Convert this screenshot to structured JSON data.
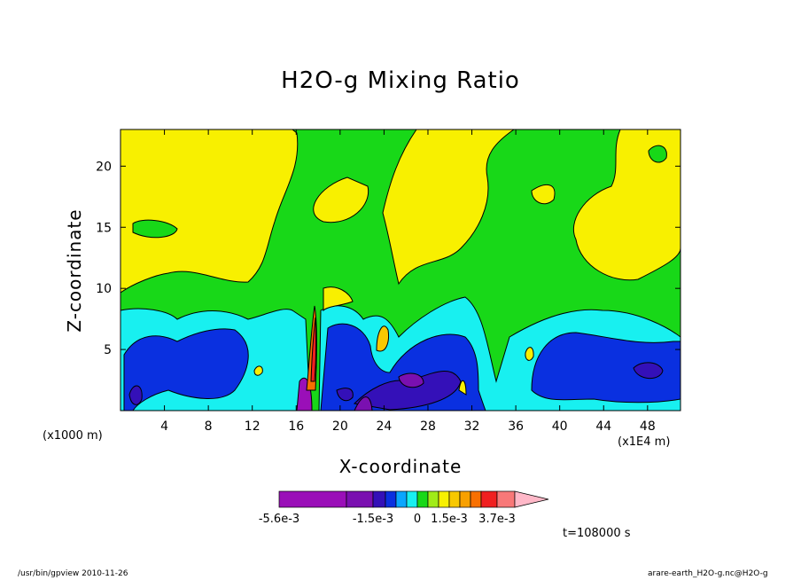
{
  "chart_data": {
    "type": "heatmap",
    "title": "H2O-g Mixing Ratio",
    "xlabel": "X-coordinate",
    "ylabel": "Z-coordinate",
    "x_unit_label": "(x1000 m)",
    "x_multiplier_label": "(x1E4 m)",
    "xlim": [
      0,
      51
    ],
    "ylim": [
      0,
      23
    ],
    "x_ticks": [
      "4",
      "8",
      "12",
      "16",
      "20",
      "24",
      "28",
      "32",
      "36",
      "40",
      "44",
      "48"
    ],
    "y_ticks": [
      "5",
      "10",
      "15",
      "20"
    ],
    "colorbar": {
      "colors": [
        "#9a0fb8",
        "#7a10b0",
        "#3410b8",
        "#0a30e0",
        "#0aa6ff",
        "#18f0f0",
        "#18d818",
        "#a0ec18",
        "#f8f000",
        "#f8c800",
        "#f8a000",
        "#f87000",
        "#f02020",
        "#f87878",
        "#ffb8c8"
      ],
      "tick_labels": [
        "-5.6e-3",
        "-1.5e-3",
        "0",
        "1.5e-3",
        "3.7e-3"
      ]
    },
    "time_label": "t=108000 s",
    "footer_left": "/usr/bin/gpview  2010-11-26",
    "footer_right": "arare-earth_H2O-g.nc@H2O-g"
  }
}
